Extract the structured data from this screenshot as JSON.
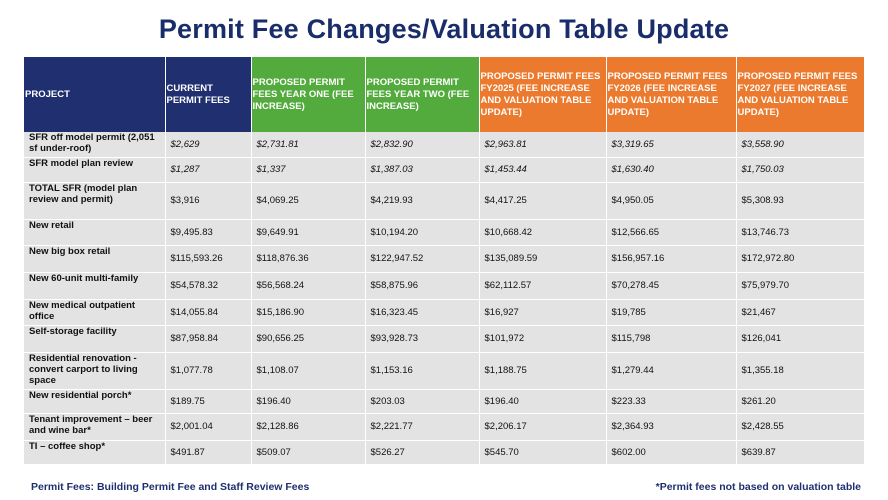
{
  "title": "Permit Fee Changes/Valuation Table Update",
  "headers": [
    "PROJECT",
    "CURRENT PERMIT FEES",
    "PROPOSED PERMIT FEES YEAR ONE (FEE INCREASE)",
    "PROPOSED PERMIT FEES YEAR TWO (FEE INCREASE)",
    "PROPOSED PERMIT FEES FY2025 (FEE INCREASE AND VALUATION TABLE UPDATE)",
    "PROPOSED PERMIT FEES FY2026 (FEE INCREASE AND VALUATION TABLE UPDATE)",
    "PROPOSED PERMIT FEES FY2027 (FEE INCREASE AND VALUATION TABLE UPDATE)"
  ],
  "header_colors": [
    "#1f2f6f",
    "#1f2f6f",
    "#52ab3c",
    "#52ab3c",
    "#eb7a2e",
    "#eb7a2e",
    "#eb7a2e"
  ],
  "rows": [
    {
      "project": "SFR off model permit (2,051 sf under-roof)",
      "values": [
        "$2,629",
        "$2,731.81",
        "$2,832.90",
        "$2,963.81",
        "$3,319.65",
        "$3,558.90"
      ]
    },
    {
      "project": "SFR model plan review",
      "values": [
        "$1,287",
        "$1,337",
        "$1,387.03",
        "$1,453.44",
        "$1,630.40",
        "$1,750.03"
      ]
    },
    {
      "project": "TOTAL SFR (model plan review and permit)",
      "values": [
        "$3,916",
        "$4,069.25",
        "$4,219.93",
        "$4,417.25",
        "$4,950.05",
        "$5,308.93"
      ]
    },
    {
      "project": "New retail",
      "values": [
        "$9,495.83",
        "$9,649.91",
        "$10,194.20",
        "$10,668.42",
        "$12,566.65",
        "$13,746.73"
      ]
    },
    {
      "project": "New big box retail",
      "values": [
        "$115,593.26",
        "$118,876.36",
        "$122,947.52",
        "$135,089.59",
        "$156,957.16",
        "$172,972.80"
      ]
    },
    {
      "project": "New 60-unit multi-family",
      "values": [
        "$54,578.32",
        "$56,568.24",
        "$58,875.96",
        "$62,112.57",
        "$70,278.45",
        "$75,979.70"
      ]
    },
    {
      "project": "New medical outpatient office",
      "values": [
        "$14,055.84",
        "$15,186.90",
        "$16,323.45",
        "$16,927",
        "$19,785",
        "$21,467"
      ]
    },
    {
      "project": "Self-storage facility",
      "values": [
        "$87,958.84",
        "$90,656.25",
        "$93,928.73",
        "$101,972",
        "$115,798",
        "$126,041"
      ]
    },
    {
      "project": "Residential renovation - convert carport to living space",
      "values": [
        "$1,077.78",
        "$1,108.07",
        "$1,153.16",
        "$1,188.75",
        "$1,279.44",
        "$1,355.18"
      ]
    },
    {
      "project": "New residential porch*",
      "values": [
        "$189.75",
        "$196.40",
        "$203.03",
        "$196.40",
        "$223.33",
        "$261.20"
      ]
    },
    {
      "project": "Tenant improvement – beer and wine bar*",
      "values": [
        "$2,001.04",
        "$2,128.86",
        "$2,221.77",
        "$2,206.17",
        "$2,364.93",
        "$2,428.55"
      ]
    },
    {
      "project": "TI – coffee shop*",
      "values": [
        "$491.87",
        "$509.07",
        "$526.27",
        "$545.70",
        "$602.00",
        "$639.87"
      ]
    }
  ],
  "footer_left": "Permit Fees: Building Permit Fee and Staff Review Fees",
  "footer_right": "*Permit fees not based on valuation table"
}
